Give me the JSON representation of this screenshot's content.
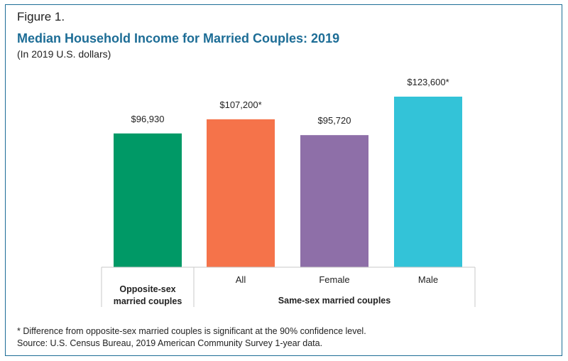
{
  "figure_label": "Figure 1.",
  "chart_data": {
    "type": "bar",
    "title": "Median Household Income for Married Couples: 2019",
    "subtitle": "(In 2019 U.S. dollars)",
    "categories": [
      "Opposite-sex married couples",
      "All",
      "Female",
      "Male"
    ],
    "values": [
      96930,
      107200,
      95720,
      123600
    ],
    "value_labels": [
      "$96,930",
      "$107,200*",
      "$95,720",
      "$123,600*"
    ],
    "colors": [
      "#009966",
      "#f5734a",
      "#8e6fa8",
      "#33c3d8"
    ],
    "groups": [
      {
        "label": "Opposite-sex\nmarried couples",
        "lines": [
          "Opposite-sex",
          "married couples"
        ],
        "categories": [
          0
        ]
      },
      {
        "label": "Same-sex married couples",
        "lines": [
          "Same-sex married couples"
        ],
        "categories": [
          1,
          2,
          3
        ]
      }
    ],
    "ylim": [
      0,
      123600
    ],
    "grid": false
  },
  "notes": {
    "footnote": "* Difference from opposite-sex married couples is significant at the 90% confidence level.",
    "source": "Source: U.S. Census Bureau, 2019 American Community Survey 1-year data."
  }
}
